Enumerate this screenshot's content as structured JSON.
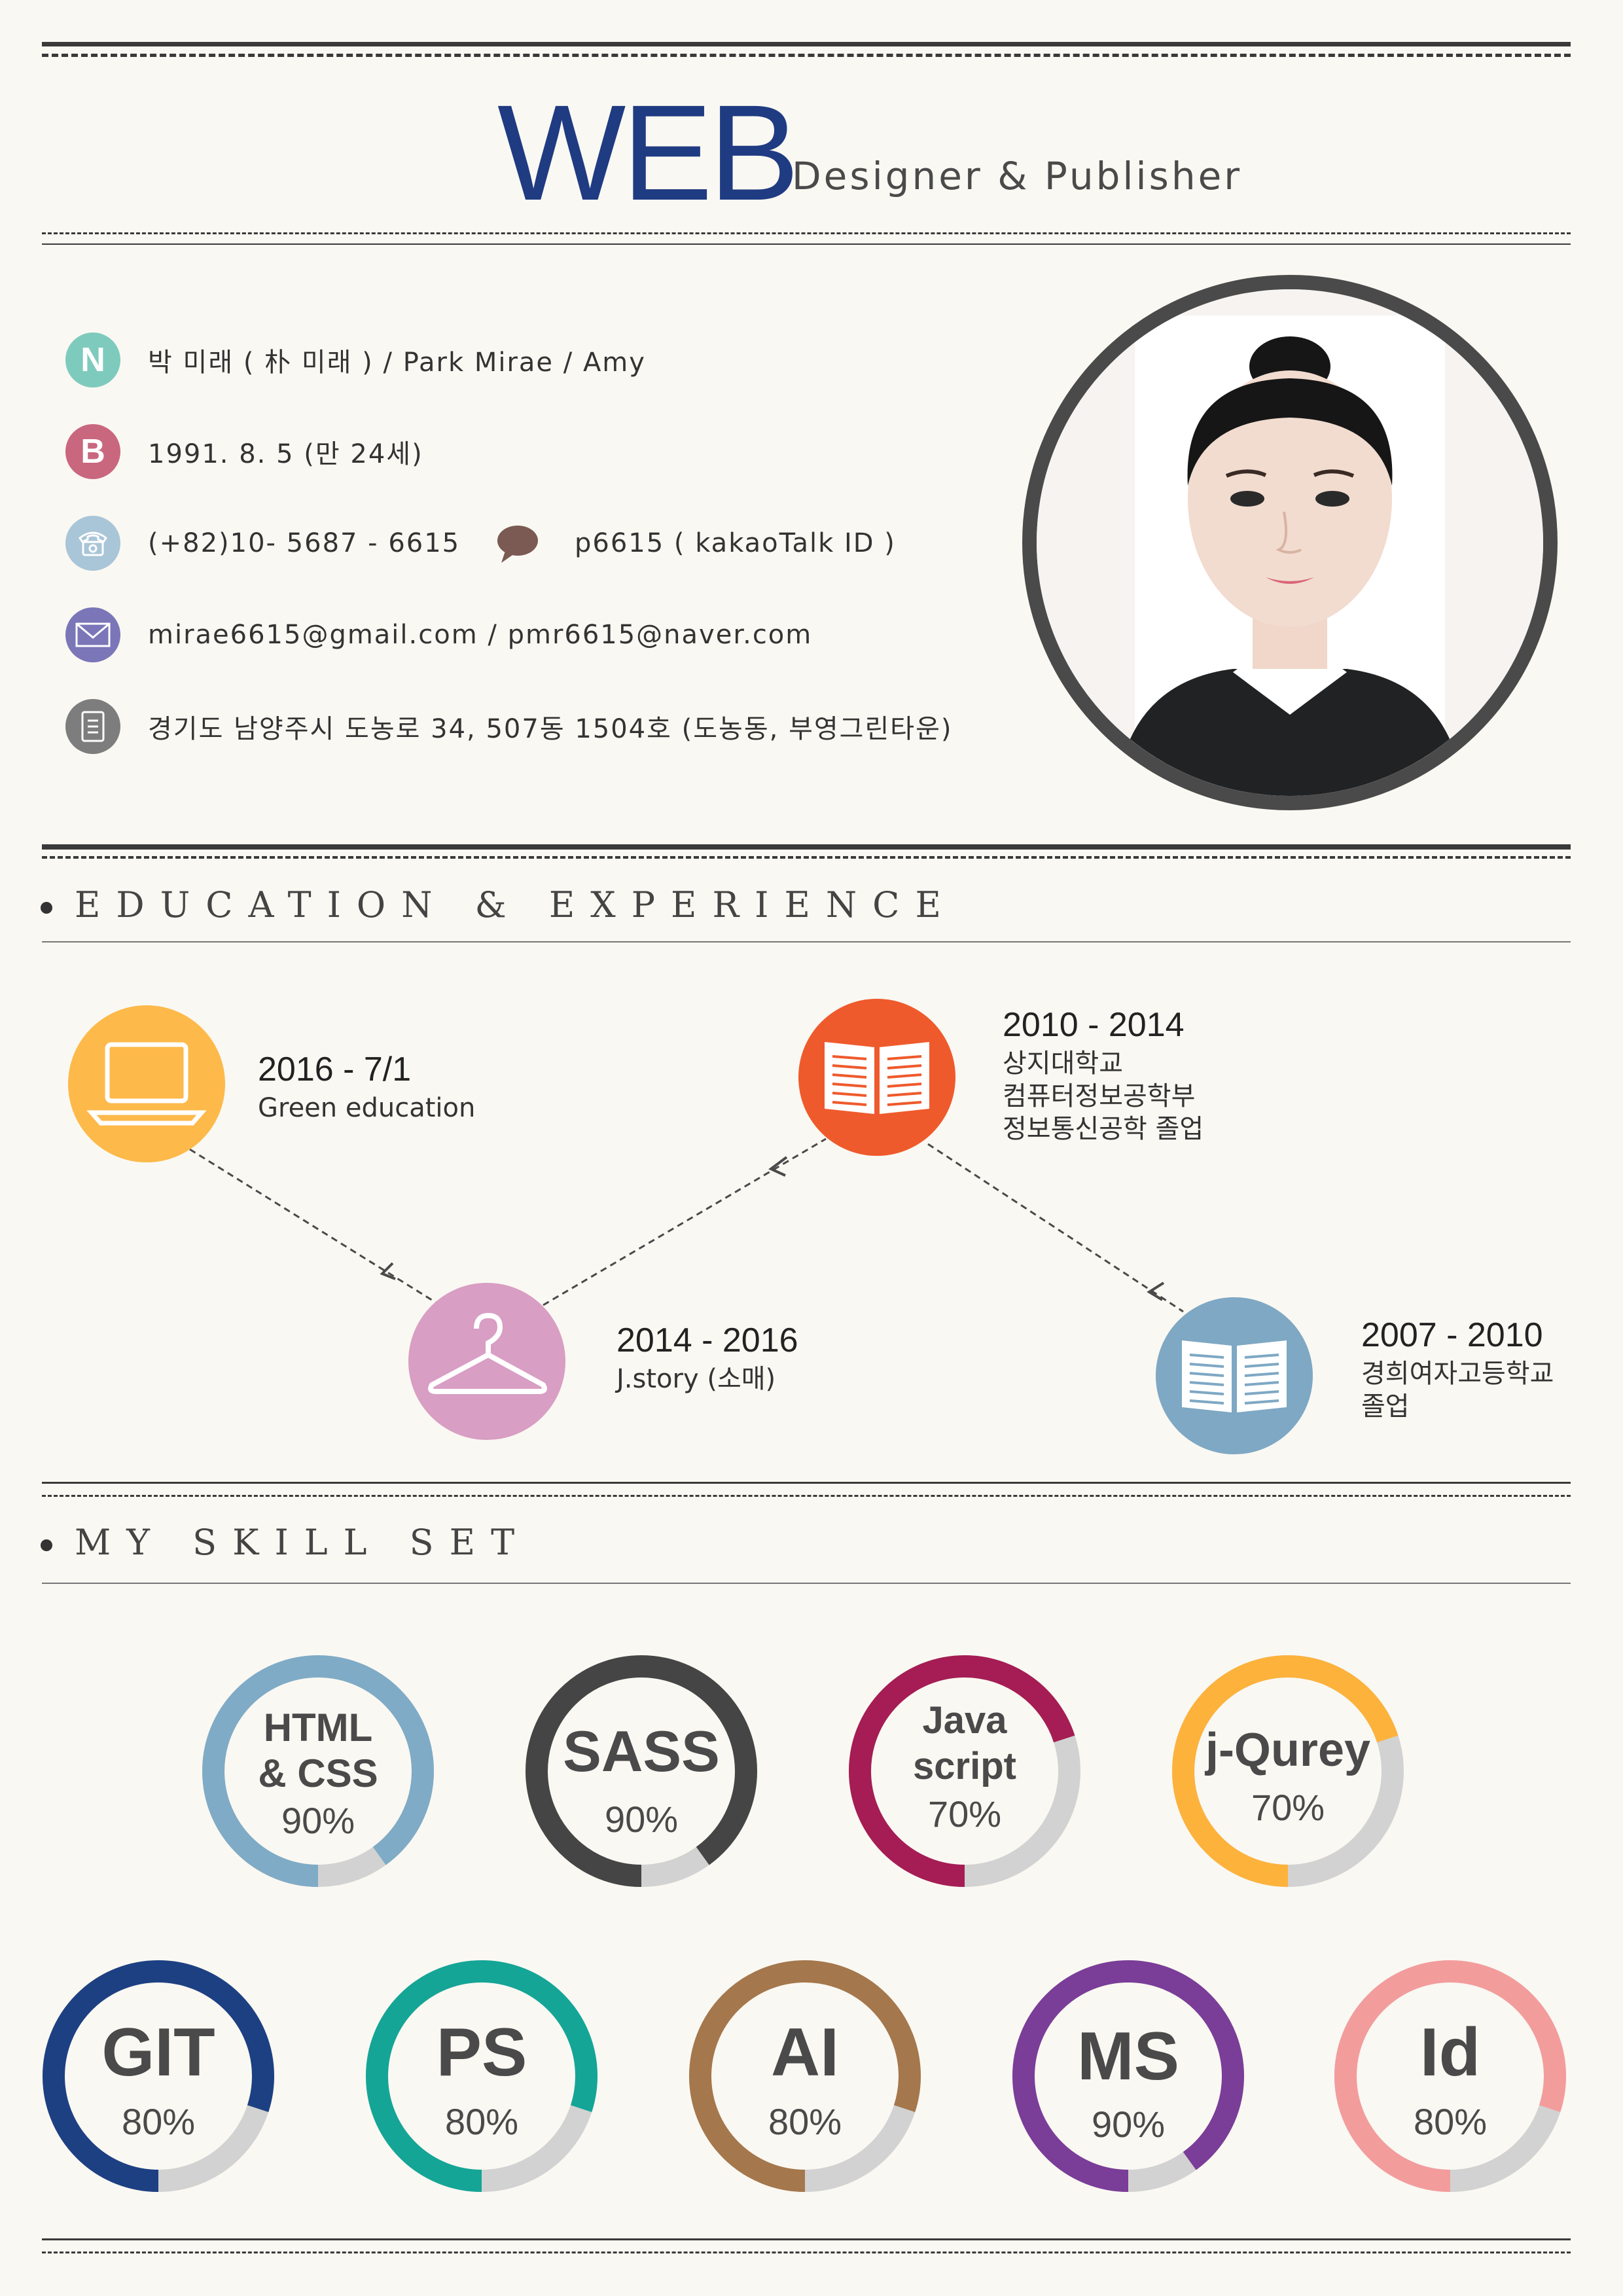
{
  "header": {
    "title": "WEB",
    "subtitle": "Designer & Publisher"
  },
  "profile": {
    "name": "박 미래 ( 朴 미래 )  /  Park Mirae  /  Amy",
    "birth": "1991. 8. 5 (만 24세)",
    "phone": "(+82)10- 5687 - 6615",
    "kakao": "p6615 ( kakaoTalk ID )",
    "email": "mirae6615@gmail.com / pmr6615@naver.com",
    "address": "경기도 남양주시 도농로 34, 507동 1504호 (도농동, 부영그린타운)",
    "icons": {
      "name": "N",
      "birth": "B"
    }
  },
  "sections": {
    "education": "EDUCATION & EXPERIENCE",
    "skills": "MY SKILL SET"
  },
  "timeline": [
    {
      "year": "2016 - 7/1",
      "lines": [
        "Green education"
      ],
      "icon": "laptop-icon",
      "color": "#fdb94a"
    },
    {
      "year": "2014 - 2016",
      "lines": [
        "J.story (소매)"
      ],
      "icon": "hanger-icon",
      "color": "#d89ec3"
    },
    {
      "year": "2010 - 2014",
      "lines": [
        "상지대학교",
        "컴퓨터정보공학부",
        "정보통신공학 졸업"
      ],
      "icon": "book-icon",
      "color": "#ef5a2c"
    },
    {
      "year": "2007 - 2010",
      "lines": [
        "경희여자고등학교",
        "졸업"
      ],
      "icon": "book-icon",
      "color": "#7ea8c4"
    }
  ],
  "skills": [
    {
      "lines": [
        "HTML",
        "& CSS"
      ],
      "percent": "90%",
      "value": 90,
      "color": "#7fabc6"
    },
    {
      "lines": [
        "SASS"
      ],
      "percent": "90%",
      "value": 90,
      "color": "#454545"
    },
    {
      "lines": [
        "Java",
        "script"
      ],
      "percent": "70%",
      "value": 70,
      "color": "#a51d54"
    },
    {
      "lines": [
        "j-Qurey"
      ],
      "percent": "70%",
      "value": 70,
      "color": "#fdb23c"
    },
    {
      "lines": [
        "GIT"
      ],
      "percent": "80%",
      "value": 80,
      "color": "#1d4083"
    },
    {
      "lines": [
        "PS"
      ],
      "percent": "80%",
      "value": 80,
      "color": "#14a597"
    },
    {
      "lines": [
        "AI"
      ],
      "percent": "80%",
      "value": 80,
      "color": "#a5774c"
    },
    {
      "lines": [
        "MS"
      ],
      "percent": "90%",
      "value": 90,
      "color": "#7a3d98"
    },
    {
      "lines": [
        "Id"
      ],
      "percent": "80%",
      "value": 80,
      "color": "#f39c9c"
    }
  ],
  "colors": {
    "accent": "#1f3b82",
    "track": "#d2d2d2",
    "text": "#333333"
  }
}
